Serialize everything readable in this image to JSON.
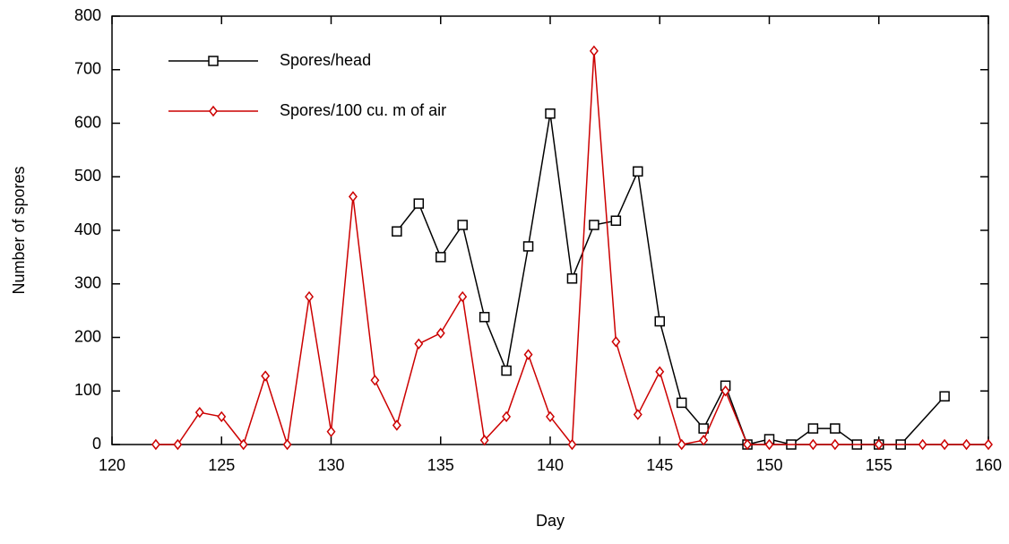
{
  "chart_data": {
    "type": "line",
    "x_label": "Day",
    "y_label": "Number of spores",
    "xlim": [
      120,
      160
    ],
    "xticks": [
      120,
      125,
      130,
      135,
      140,
      145,
      150,
      155,
      160
    ],
    "ylim": [
      0,
      800
    ],
    "yticks": [
      0,
      100,
      200,
      300,
      400,
      500,
      600,
      700,
      800
    ],
    "legend": "upper left",
    "series": [
      {
        "name": "Spores/head",
        "color": "#000000",
        "marker": "square",
        "x": [
          133,
          134,
          135,
          136,
          137,
          138,
          139,
          140,
          141,
          142,
          143,
          144,
          145,
          146,
          147,
          148,
          149,
          150,
          151,
          152,
          153,
          154,
          155,
          156,
          158
        ],
        "values": [
          398,
          450,
          350,
          410,
          238,
          138,
          370,
          618,
          310,
          410,
          418,
          510,
          230,
          78,
          30,
          110,
          0,
          10,
          0,
          30,
          30,
          0,
          0,
          0,
          90
        ]
      },
      {
        "name": "Spores/100 cu. m of air",
        "color": "#cc0000",
        "marker": "diamond",
        "x": [
          122,
          123,
          124,
          125,
          126,
          127,
          128,
          129,
          130,
          131,
          132,
          133,
          134,
          135,
          136,
          137,
          138,
          139,
          140,
          141,
          142,
          143,
          144,
          145,
          146,
          147,
          148,
          149,
          150,
          152,
          153,
          155,
          157,
          158,
          159,
          160
        ],
        "values": [
          0,
          0,
          60,
          52,
          0,
          128,
          0,
          276,
          24,
          463,
          120,
          36,
          188,
          208,
          276,
          8,
          52,
          168,
          52,
          0,
          735,
          192,
          56,
          136,
          0,
          8,
          100,
          0,
          0,
          0,
          0,
          0,
          0,
          0,
          0,
          0
        ]
      }
    ]
  }
}
